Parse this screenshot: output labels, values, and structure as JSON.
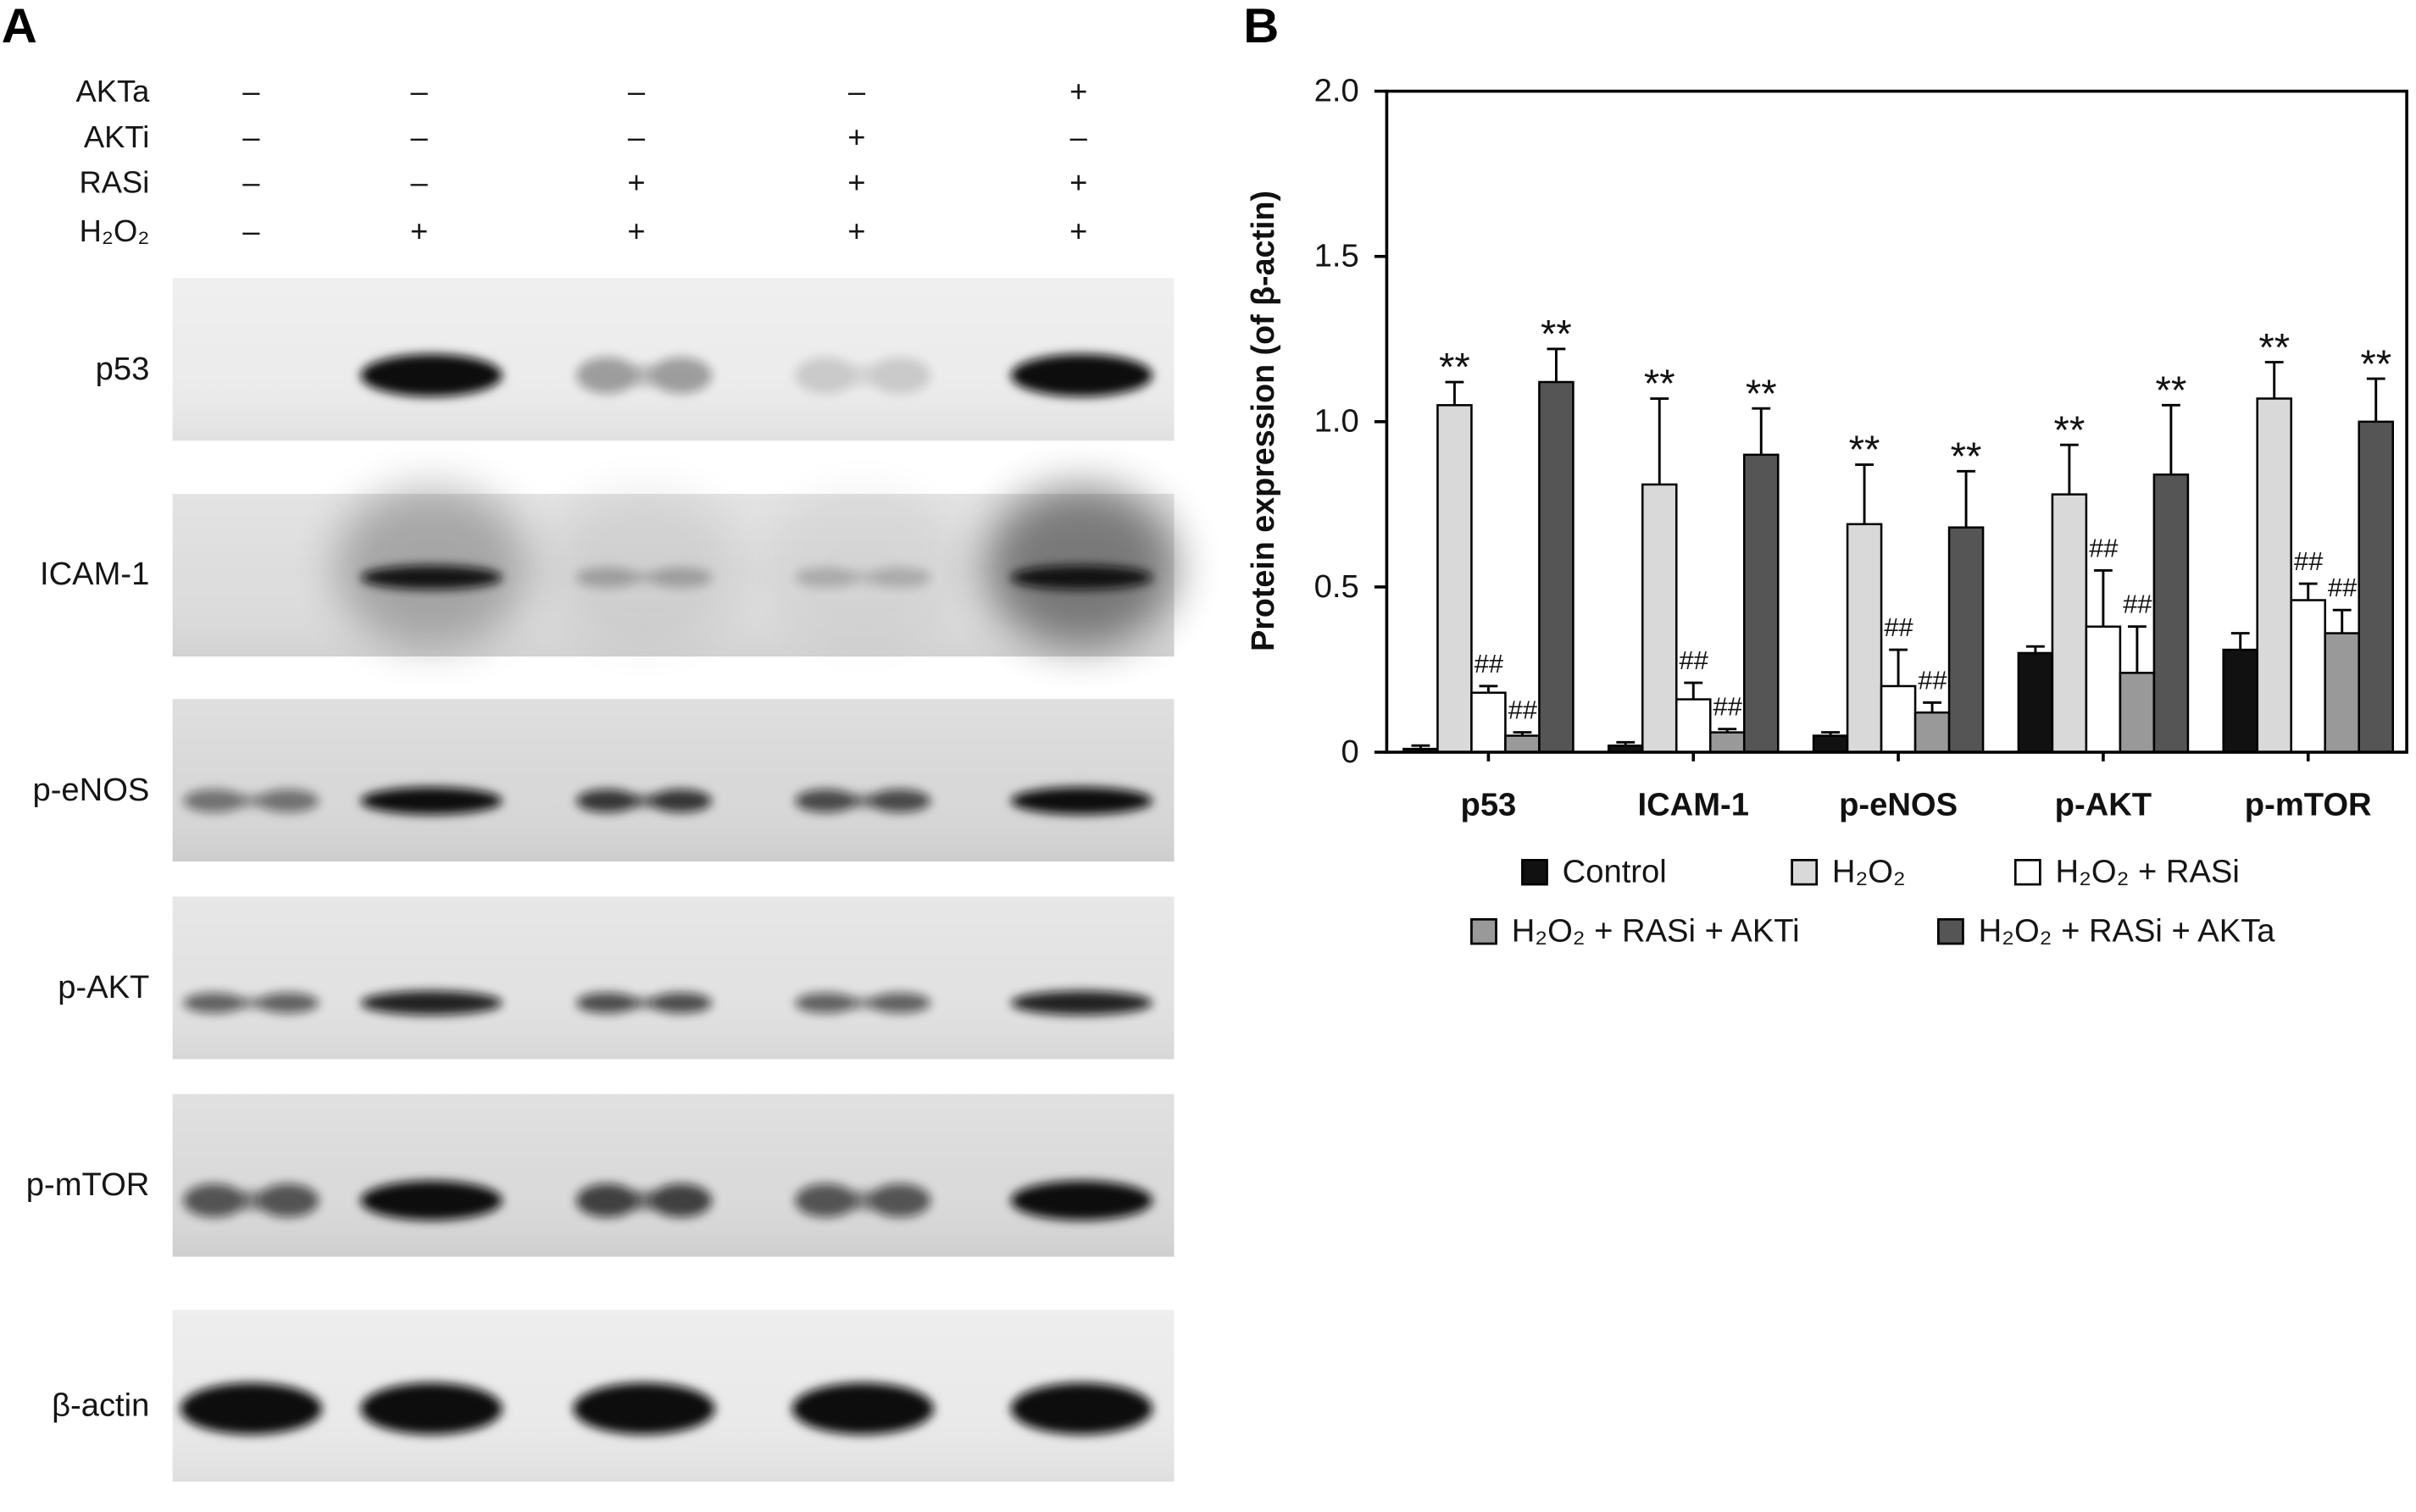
{
  "panel_a": {
    "label": "A",
    "conditions": [
      {
        "name": "AKTa",
        "values": [
          "–",
          "–",
          "–",
          "–",
          "+"
        ]
      },
      {
        "name": "AKTi",
        "values": [
          "–",
          "–",
          "–",
          "+",
          "–"
        ]
      },
      {
        "name": "RASi",
        "values": [
          "–",
          "–",
          "+",
          "+",
          "+"
        ]
      },
      {
        "name": "H₂O₂",
        "values": [
          "–",
          "+",
          "+",
          "+",
          "+"
        ]
      }
    ],
    "blots": [
      {
        "label": "p53",
        "background": "#ececec",
        "band_intensity": [
          0.0,
          1.0,
          0.35,
          0.15,
          1.0
        ]
      },
      {
        "label": "ICAM-1",
        "background": "#dddddd",
        "band_intensity": [
          0.0,
          0.95,
          0.25,
          0.2,
          0.95
        ],
        "smear": [
          0.0,
          0.25,
          0.06,
          0.04,
          0.45
        ]
      },
      {
        "label": "p-eNOS",
        "background": "#d8d8d8",
        "band_intensity": [
          0.5,
          1.0,
          0.8,
          0.7,
          1.0
        ]
      },
      {
        "label": "p-AKT",
        "background": "#e2e2e2",
        "band_intensity": [
          0.6,
          0.9,
          0.7,
          0.6,
          0.9
        ]
      },
      {
        "label": "p-mTOR",
        "background": "#dadada",
        "band_intensity": [
          0.65,
          1.0,
          0.75,
          0.65,
          1.0
        ]
      },
      {
        "label": "β-actin",
        "background": "#eaeaea",
        "band_intensity": [
          1.0,
          1.0,
          1.0,
          1.0,
          1.0
        ]
      }
    ]
  },
  "panel_b": {
    "label": "B"
  },
  "chart_data": {
    "type": "bar",
    "ylabel": "Protein expression (of β-actin)",
    "ylim": [
      0,
      2.0
    ],
    "yticks": [
      {
        "value": 0,
        "label": "0"
      },
      {
        "value": 0.5,
        "label": "0.5"
      },
      {
        "value": 1.0,
        "label": "1.0"
      },
      {
        "value": 1.5,
        "label": "1.5"
      },
      {
        "value": 2.0,
        "label": "2.0"
      }
    ],
    "grid": false,
    "legend_position": "bottom",
    "categories": [
      "p53",
      "ICAM-1",
      "p-eNOS",
      "p-AKT",
      "p-mTOR"
    ],
    "series": [
      {
        "name": "Control",
        "color": "#111111",
        "values": [
          0.01,
          0.02,
          0.05,
          0.3,
          0.31
        ],
        "error": [
          0.01,
          0.01,
          0.01,
          0.02,
          0.05
        ]
      },
      {
        "name": "H₂O₂",
        "color": "#d9d9d9",
        "values": [
          1.05,
          0.81,
          0.69,
          0.78,
          1.07
        ],
        "error": [
          0.07,
          0.26,
          0.18,
          0.15,
          0.11
        ],
        "marks": [
          "**",
          "**",
          "**",
          "**",
          "**"
        ]
      },
      {
        "name": "H₂O₂ + RASi",
        "color": "#ffffff",
        "values": [
          0.18,
          0.16,
          0.2,
          0.38,
          0.46
        ],
        "error": [
          0.02,
          0.05,
          0.11,
          0.17,
          0.05
        ],
        "marks": [
          "##",
          "##",
          "##",
          "##",
          "##"
        ]
      },
      {
        "name": "H₂O₂ + RASi + AKTi",
        "color": "#999999",
        "values": [
          0.05,
          0.06,
          0.12,
          0.24,
          0.36
        ],
        "error": [
          0.01,
          0.01,
          0.03,
          0.14,
          0.07
        ],
        "marks": [
          "##",
          "##",
          "##",
          "##",
          "##"
        ]
      },
      {
        "name": "H₂O₂ + RASi + AKTa",
        "color": "#555555",
        "values": [
          1.12,
          0.9,
          0.68,
          0.84,
          1.0
        ],
        "error": [
          0.1,
          0.14,
          0.17,
          0.21,
          0.13
        ],
        "marks": [
          "**",
          "**",
          "**",
          "**",
          "**"
        ]
      }
    ]
  }
}
